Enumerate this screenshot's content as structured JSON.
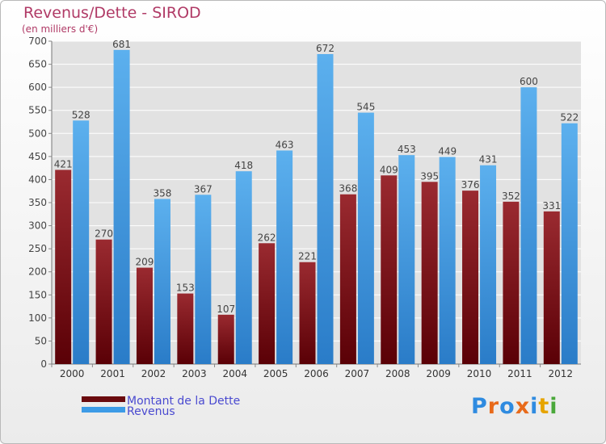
{
  "header": {
    "title": "Revenus/Dette - SIROD",
    "subtitle": "(en milliers d'€)"
  },
  "brand": {
    "name": "Proxiti"
  },
  "colors": {
    "debt": "#7a0e14",
    "revenue": "#3d9be6",
    "grid": "#ffffff",
    "plot_bg": "#e2e2e2",
    "title": "#b03a66"
  },
  "chart_data": {
    "type": "bar",
    "title": "Revenus/Dette - SIROD",
    "ylabel": "(en milliers d'€)",
    "ylim": [
      0,
      700
    ],
    "yticks": [
      0,
      50,
      100,
      150,
      200,
      250,
      300,
      350,
      400,
      450,
      500,
      550,
      600,
      650,
      700
    ],
    "categories": [
      "2000",
      "2001",
      "2002",
      "2003",
      "2004",
      "2005",
      "2006",
      "2007",
      "2008",
      "2009",
      "2010",
      "2011",
      "2012"
    ],
    "series": [
      {
        "name": "Montant de la Dette",
        "values": [
          421,
          270,
          209,
          153,
          107,
          262,
          221,
          368,
          409,
          395,
          376,
          352,
          331
        ]
      },
      {
        "name": "Revenus",
        "values": [
          528,
          681,
          358,
          367,
          418,
          463,
          672,
          545,
          453,
          449,
          431,
          600,
          522
        ]
      }
    ],
    "grid": true,
    "legend": "bottom-left"
  }
}
